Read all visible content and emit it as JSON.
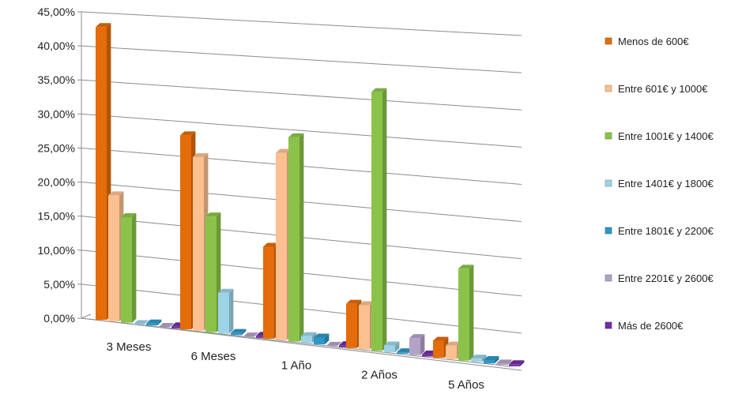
{
  "chart_data": {
    "type": "bar",
    "title": "",
    "xlabel": "",
    "ylabel": "",
    "ylim": [
      0,
      45
    ],
    "yticks": [
      "0,00%",
      "5,00%",
      "10,00%",
      "15,00%",
      "20,00%",
      "25,00%",
      "30,00%",
      "35,00%",
      "40,00%",
      "45,00%"
    ],
    "categories": [
      "3 Meses",
      "6 Meses",
      "1 Año",
      "2 Años",
      "5 Años"
    ],
    "grid": true,
    "legend_position": "right",
    "series": [
      {
        "name": "Menos de 600€",
        "color": "#E46C0A",
        "values": [
          43.0,
          28.5,
          13.5,
          6.5,
          2.5
        ]
      },
      {
        "name": "Entre 601€ y 1000€",
        "color": "#FAC090",
        "values": [
          18.5,
          25.5,
          27.5,
          6.5,
          2.0
        ]
      },
      {
        "name": "Entre 1001€ y 1400€",
        "color": "#8BC34A",
        "values": [
          15.5,
          17.0,
          30.0,
          38.0,
          13.5
        ]
      },
      {
        "name": "Entre 1401€ y 1800€",
        "color": "#9DD3E6",
        "values": [
          0.0,
          6.0,
          1.0,
          1.0,
          0.5
        ]
      },
      {
        "name": "Entre 1801€ y 2200€",
        "color": "#2E97C6",
        "values": [
          0.3,
          0.3,
          1.0,
          0.2,
          0.5
        ]
      },
      {
        "name": "Entre 2201€ y 2600€",
        "color": "#B3A2C7",
        "values": [
          0.0,
          0.0,
          0.0,
          2.5,
          0.2
        ]
      },
      {
        "name": "Más de 2600€",
        "color": "#7030A0",
        "values": [
          0.3,
          0.3,
          0.3,
          0.3,
          0.3
        ]
      }
    ]
  }
}
